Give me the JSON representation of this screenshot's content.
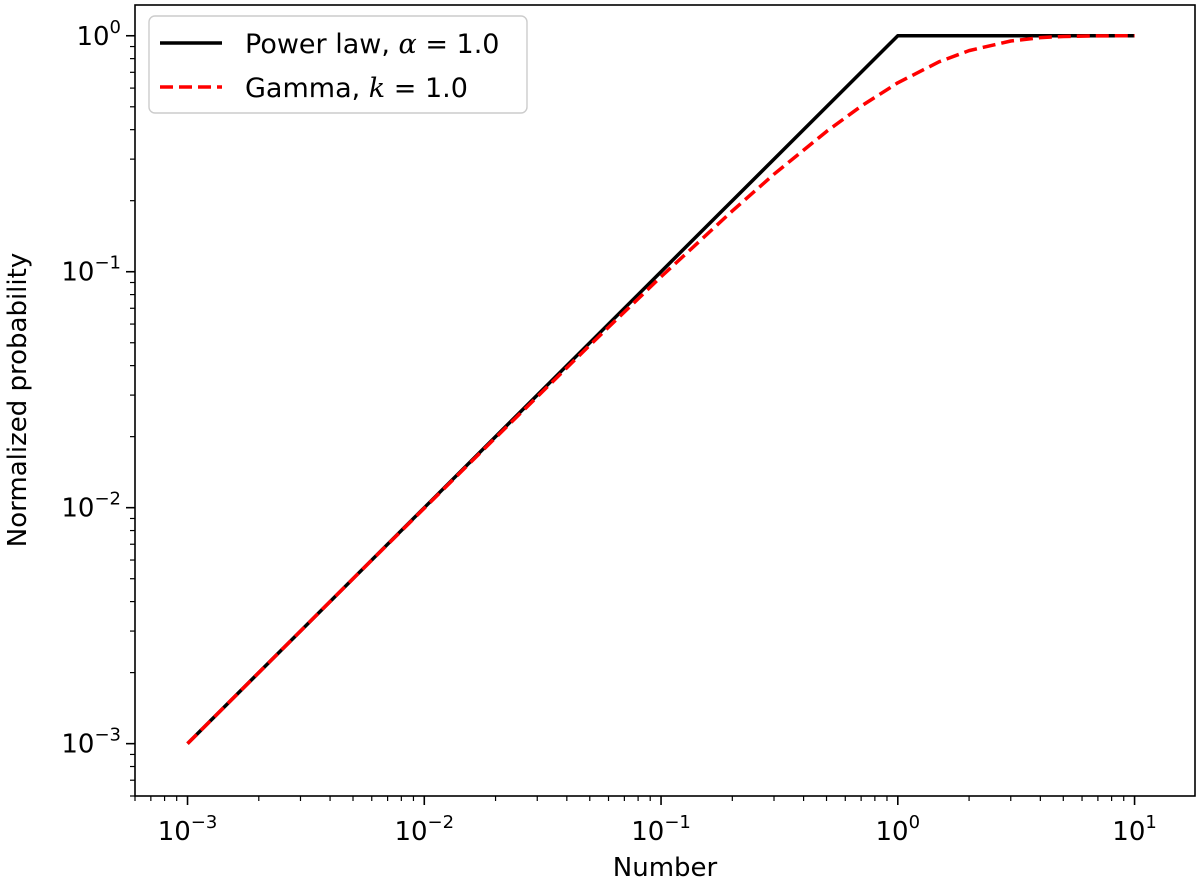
{
  "chart_data": {
    "type": "line",
    "xlabel": "Number",
    "ylabel": "Normalized probability",
    "xscale": "log",
    "yscale": "log",
    "xlim": [
      0.0006,
      18
    ],
    "ylim": [
      0.0006,
      1.35
    ],
    "xticks": [
      {
        "value": 0.001,
        "base": "10",
        "exp": "−3"
      },
      {
        "value": 0.01,
        "base": "10",
        "exp": "−2"
      },
      {
        "value": 0.1,
        "base": "10",
        "exp": "−1"
      },
      {
        "value": 1,
        "base": "10",
        "exp": "0"
      },
      {
        "value": 10,
        "base": "10",
        "exp": "1"
      }
    ],
    "yticks": [
      {
        "value": 0.001,
        "base": "10",
        "exp": "−3"
      },
      {
        "value": 0.01,
        "base": "10",
        "exp": "−2"
      },
      {
        "value": 0.1,
        "base": "10",
        "exp": "−1"
      },
      {
        "value": 1,
        "base": "10",
        "exp": "0"
      }
    ],
    "grid": false,
    "legend_position": "top-left",
    "series": [
      {
        "name": "Power law, α = 1.0",
        "legend_prefix": "Power law, ",
        "legend_symbol": "α",
        "legend_suffix": " = 1.0",
        "color": "#000000",
        "linestyle": "solid",
        "x": [
          0.001,
          0.01,
          0.1,
          1.0,
          10.0
        ],
        "y": [
          0.001,
          0.01,
          0.1,
          1.0,
          1.0
        ]
      },
      {
        "name": "Gamma, k = 1.0",
        "legend_prefix": "Gamma, ",
        "legend_symbol": "k",
        "legend_suffix": " = 1.0",
        "color": "#ff0000",
        "linestyle": "dashed",
        "x": [
          0.001,
          0.002,
          0.005,
          0.01,
          0.02,
          0.05,
          0.1,
          0.2,
          0.3,
          0.5,
          0.7,
          1.0,
          1.5,
          2.0,
          3.0,
          4.0,
          5.0,
          7.0,
          10.0
        ],
        "y": [
          0.001,
          0.002,
          0.005,
          0.00995,
          0.0198,
          0.0488,
          0.0952,
          0.181,
          0.259,
          0.393,
          0.503,
          0.632,
          0.777,
          0.865,
          0.95,
          0.982,
          0.993,
          0.999,
          1.0
        ]
      }
    ]
  }
}
